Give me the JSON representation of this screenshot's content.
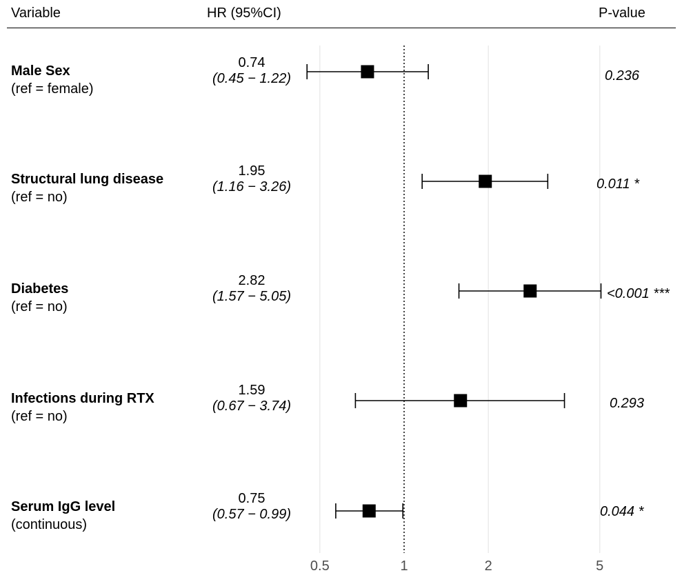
{
  "header": {
    "variable": "Variable",
    "hr": "HR (95%CI)",
    "pvalue": "P-value"
  },
  "rows": [
    {
      "name": "Male Sex",
      "ref": "(ref = female)",
      "hr": "0.74",
      "ci": "(0.45 − 1.22)",
      "p": "0.236"
    },
    {
      "name": "Structural lung disease",
      "ref": "(ref = no)",
      "hr": "1.95",
      "ci": "(1.16 − 3.26)",
      "p": "0.011 *"
    },
    {
      "name": "Diabetes",
      "ref": "(ref = no)",
      "hr": "2.82",
      "ci": "(1.57 − 5.05)",
      "p": "<0.001 ***"
    },
    {
      "name": "Infections during RTX",
      "ref": "(ref = no)",
      "hr": "1.59",
      "ci": "(0.67 − 3.74)",
      "p": "0.293"
    },
    {
      "name": "Serum IgG level",
      "ref": "(continuous)",
      "hr": "0.75",
      "ci": "(0.57 − 0.99)",
      "p": "0.044 *"
    }
  ],
  "chart_data": {
    "type": "scatter",
    "xscale": "log",
    "reference_line": 1,
    "xticks": [
      0.5,
      1,
      2,
      5
    ],
    "xtick_labels": [
      "0.5",
      "1",
      "2",
      "5"
    ],
    "grid": true,
    "categories": [
      "Male Sex",
      "Structural lung disease",
      "Diabetes",
      "Infections during RTX",
      "Serum IgG level"
    ],
    "estimates": [
      0.74,
      1.95,
      2.82,
      1.59,
      0.75
    ],
    "lower": [
      0.45,
      1.16,
      1.57,
      0.67,
      0.57
    ],
    "upper": [
      1.22,
      3.26,
      5.05,
      3.74,
      0.99
    ],
    "pvalues": [
      "0.236",
      "0.011 *",
      "<0.001 ***",
      "0.293",
      "0.044 *"
    ]
  }
}
